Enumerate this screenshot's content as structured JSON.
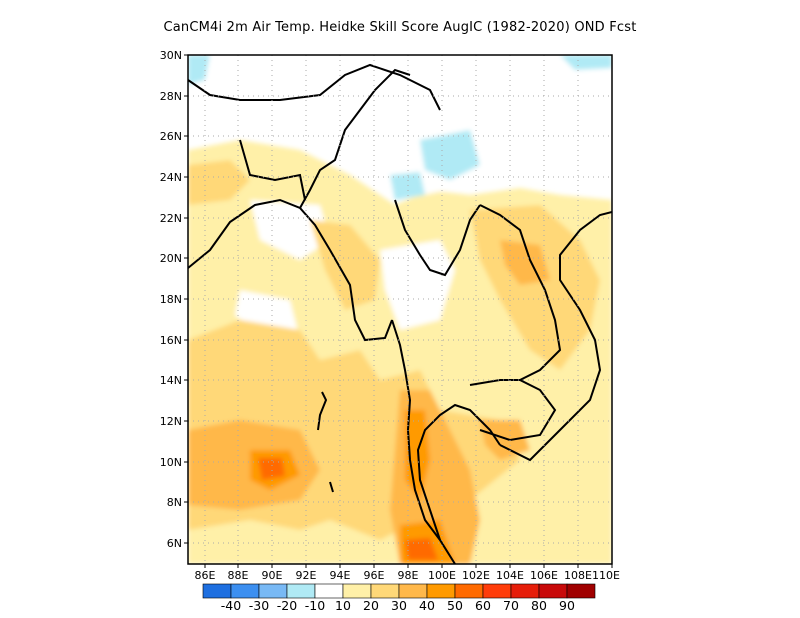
{
  "title": "CanCM4i  2m Air Temp. Heidke Skill Score AugIC (1982-2020) OND Fcst",
  "map": {
    "lat_labels": [
      "30N",
      "28N",
      "26N",
      "24N",
      "22N",
      "20N",
      "18N",
      "16N",
      "14N",
      "12N",
      "10N",
      "8N",
      "6N"
    ],
    "lon_labels": [
      "86E",
      "88E",
      "90E",
      "92E",
      "94E",
      "96E",
      "98E",
      "100E",
      "102E",
      "104E",
      "106E",
      "108E",
      "110E"
    ],
    "lon_range": [
      85.5,
      110
    ],
    "lat_range": [
      5,
      30
    ],
    "gridlines": "dotted",
    "projection": "lat-lon"
  },
  "colorbar": {
    "colors": [
      "#1e6fe0",
      "#3c8ff0",
      "#78b9f5",
      "#b0eaf5",
      "#ffffff",
      "#fff0a8",
      "#ffd878",
      "#ffb84a",
      "#ff9a00",
      "#ff6a00",
      "#ff3c0a",
      "#e61e0a",
      "#c80a0a",
      "#a00000"
    ],
    "labels": [
      "-40",
      "-30",
      "-20",
      "-10",
      "10",
      "20",
      "30",
      "40",
      "50",
      "60",
      "70",
      "80",
      "90"
    ]
  }
}
